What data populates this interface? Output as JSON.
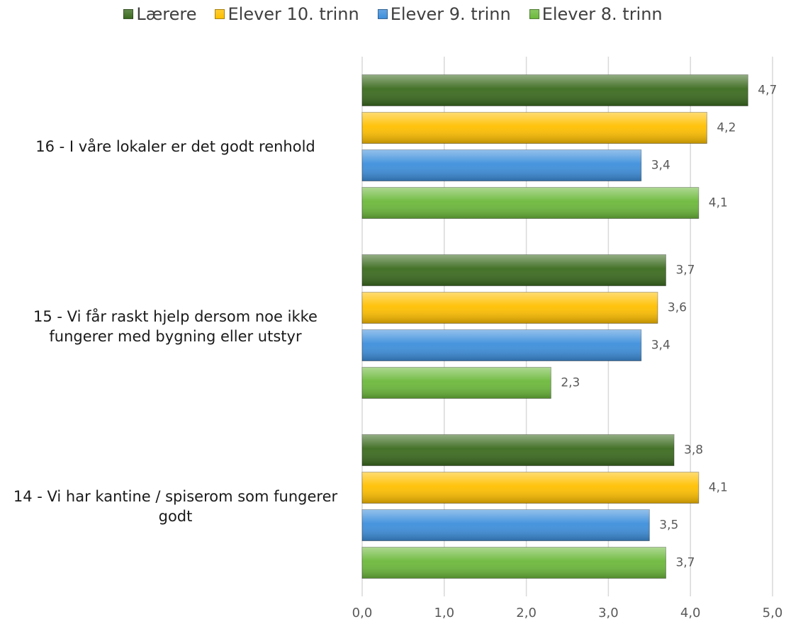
{
  "chart_data": {
    "type": "hbar",
    "categories": [
      "16 - I våre lokaler er det godt renhold",
      "15 - Vi får raskt hjelp dersom noe ikke fungerer med bygning eller utstyr",
      "14 - Vi har kantine / spiserom som fungerer godt"
    ],
    "series": [
      {
        "name": "Lærere",
        "color": "#3b6b1f",
        "values": [
          4.7,
          3.7,
          3.8
        ],
        "value_labels": [
          "4,7",
          "3,7",
          "3,8"
        ]
      },
      {
        "name": "Elever 10. trinn",
        "color": "#ffc000",
        "values": [
          4.2,
          3.6,
          4.1
        ],
        "value_labels": [
          "4,2",
          "3,6",
          "4,1"
        ]
      },
      {
        "name": "Elever 9. trinn",
        "color": "#3d8fdc",
        "values": [
          3.4,
          3.4,
          3.5
        ],
        "value_labels": [
          "3,4",
          "3,4",
          "3,5"
        ]
      },
      {
        "name": "Elever 8. trinn",
        "color": "#6cb93b",
        "values": [
          4.1,
          2.3,
          3.7
        ],
        "value_labels": [
          "4,1",
          "2,3",
          "3,7"
        ]
      }
    ],
    "xlim": [
      0,
      5
    ],
    "xticks": [
      {
        "value": 0,
        "label": "0,0"
      },
      {
        "value": 1,
        "label": "1,0"
      },
      {
        "value": 2,
        "label": "2,0"
      },
      {
        "value": 3,
        "label": "3,0"
      },
      {
        "value": 4,
        "label": "4,0"
      },
      {
        "value": 5,
        "label": "5,0"
      }
    ],
    "grid": true
  }
}
